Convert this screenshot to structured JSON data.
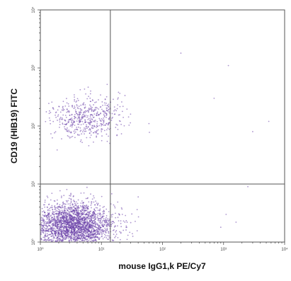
{
  "chart_data": {
    "type": "scatter",
    "title": "",
    "xlabel": "mouse IgG1,k PE/Cy7",
    "ylabel": "CD19 (HIB19) FITC",
    "x_scale": "log",
    "y_scale": "log",
    "xlim": [
      1,
      10000
    ],
    "ylim": [
      1,
      10000
    ],
    "x_ticks": [
      {
        "value": 1,
        "label": "10⁰"
      },
      {
        "value": 10,
        "label": "10¹"
      },
      {
        "value": 100,
        "label": "10²"
      },
      {
        "value": 1000,
        "label": "10³"
      },
      {
        "value": 10000,
        "label": "10⁴"
      }
    ],
    "y_ticks": [
      {
        "value": 1,
        "label": "10⁰"
      },
      {
        "value": 10,
        "label": "10¹"
      },
      {
        "value": 100,
        "label": "10²"
      },
      {
        "value": 1000,
        "label": "10³"
      },
      {
        "value": 10000,
        "label": "10⁴"
      }
    ],
    "gates": {
      "x": 14,
      "y": 10
    },
    "grid": false,
    "color": "#6a3fa8",
    "populations": [
      {
        "name": "",
        "x_center": 3.5,
        "y_center": 1.9,
        "x_spread": 0.33,
        "y_spread": 0.2,
        "count": 2600
      },
      {
        "name": "",
        "x_center": 5.5,
        "y_center": 140,
        "x_spread": 0.28,
        "y_spread": 0.19,
        "count": 520
      }
    ],
    "outliers": [
      {
        "x": 40,
        "y": 6
      },
      {
        "x": 60,
        "y": 110
      },
      {
        "x": 22,
        "y": 3
      },
      {
        "x": 700,
        "y": 300
      },
      {
        "x": 1200,
        "y": 1100
      },
      {
        "x": 3000,
        "y": 80
      },
      {
        "x": 2500,
        "y": 9
      },
      {
        "x": 1100,
        "y": 3
      },
      {
        "x": 200,
        "y": 1800
      },
      {
        "x": 5500,
        "y": 120
      },
      {
        "x": 30,
        "y": 160
      },
      {
        "x": 18,
        "y": 70
      },
      {
        "x": 900,
        "y": 1.8
      },
      {
        "x": 1600,
        "y": 2.2
      }
    ]
  }
}
